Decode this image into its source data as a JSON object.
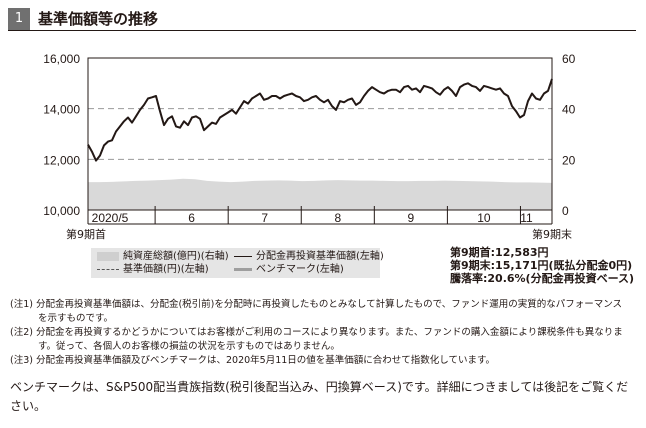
{
  "header": {
    "number": "1",
    "title": "基準価額等の推移"
  },
  "chart_data": {
    "type": "line",
    "x_ticks": [
      "2020/5",
      "6",
      "7",
      "8",
      "9",
      "10",
      "11"
    ],
    "period_start_label": "第9期首",
    "period_end_label": "第9期末",
    "left_axis": {
      "ticks": [
        "16,000",
        "14,000",
        "12,000",
        "10,000"
      ],
      "range": [
        10000,
        16000
      ]
    },
    "right_axis": {
      "ticks": [
        "60",
        "40",
        "20",
        "0"
      ],
      "range": [
        0,
        60
      ]
    },
    "gridlines_dashed_at": [
      14000,
      12000
    ],
    "series": [
      {
        "name": "分配金再投資基準価額(左軸)",
        "axis": "left",
        "color": "#231815",
        "values": [
          12583,
          12300,
          11950,
          12150,
          12550,
          12700,
          12750,
          13100,
          13300,
          13500,
          13650,
          13450,
          13700,
          13950,
          14150,
          14400,
          14450,
          14500,
          13900,
          13350,
          13600,
          13700,
          13300,
          13250,
          13500,
          13350,
          13650,
          13700,
          13600,
          13150,
          13300,
          13450,
          13400,
          13650,
          13750,
          13850,
          13950,
          13800,
          14050,
          14300,
          14200,
          14400,
          14500,
          14600,
          14350,
          14400,
          14500,
          14500,
          14400,
          14500,
          14550,
          14600,
          14500,
          14450,
          14300,
          14350,
          14450,
          14500,
          14350,
          14250,
          14350,
          14100,
          13950,
          14300,
          14250,
          14350,
          14400,
          14150,
          14250,
          14500,
          14700,
          14850,
          14750,
          14650,
          14600,
          14700,
          14750,
          14750,
          14650,
          14850,
          14900,
          14750,
          14800,
          14650,
          14900,
          14850,
          14800,
          14650,
          14550,
          14750,
          14850,
          14700,
          14500,
          14850,
          14950,
          15000,
          14900,
          14850,
          14700,
          14900,
          14850,
          14800,
          14750,
          14800,
          14600,
          14500,
          14100,
          13900,
          13650,
          13750,
          14300,
          14600,
          14400,
          14350,
          14600,
          14700,
          15171
        ]
      },
      {
        "name": "ベンチマーク(左軸)",
        "axis": "left",
        "color": "#9e9e9e",
        "values": []
      }
    ],
    "area": {
      "name": "純資産総額(億円)(右軸)",
      "axis": "right",
      "color": "#d9d9d9",
      "values": [
        11.0,
        11.0,
        11.1,
        11.3,
        11.5,
        11.6,
        11.8,
        12.0,
        12.3,
        12.1,
        11.5,
        11.2,
        11.0,
        11.2,
        11.5,
        11.6,
        11.7,
        11.6,
        11.4,
        11.5,
        11.7,
        11.8,
        11.7,
        11.6,
        11.6,
        11.5,
        11.4,
        11.4,
        11.5,
        11.5,
        11.6,
        11.5,
        11.4,
        11.3,
        11.2,
        11.0,
        10.9,
        10.9,
        10.8,
        10.7
      ]
    },
    "legend": [
      "純資産総額(億円)(右軸)",
      "分配金再投資基準価額(左軸)",
      "基準価額(円)(左軸)",
      "ベンチマーク(左軸)"
    ]
  },
  "info": {
    "start": "第9期首:12,583円",
    "end": "第9期末:15,171円(既払分配金0円)",
    "change": "騰落率:20.6%(分配金再投資ベース)"
  },
  "notes": [
    "(注1) 分配金再投資基準価額は、分配金(税引前)を分配時に再投資したものとみなして計算したもので、ファンド運用の実質的なパフォーマンス",
    "を示すものです。",
    "(注2) 分配金を再投資するかどうかについてはお客様がご利用のコースにより異なります。また、ファンドの購入金額により課税条件も異なりま",
    "す。従って、各個人のお客様の損益の状況を示すものではありません。",
    "(注3) 分配金再投資基準価額及びベンチマークは、2020年5月11日の値を基準価額に合わせて指数化しています。"
  ],
  "footer": "ベンチマークは、S&P500配当貴族指数(税引後配当込み、円換算ベース)です。詳細につきましては後記をご覧ください。"
}
